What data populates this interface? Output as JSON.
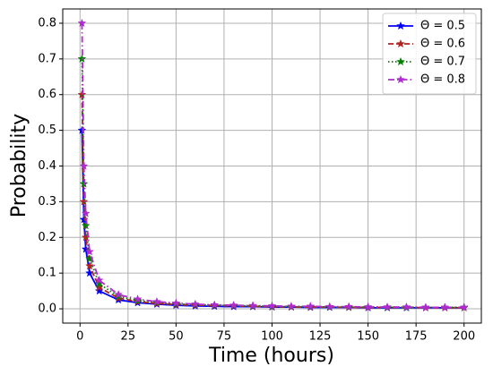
{
  "chart_data": {
    "type": "line",
    "x_label": "Time (hours)",
    "y_label": "Probability",
    "x": [
      1,
      2,
      3,
      5,
      10,
      20,
      30,
      40,
      50,
      60,
      70,
      80,
      90,
      100,
      110,
      120,
      130,
      140,
      150,
      160,
      170,
      180,
      190,
      200
    ],
    "series": [
      {
        "name": "Θ = 0.5",
        "color": "#0000ff",
        "linestyle": "solid",
        "values": [
          0.5,
          0.25,
          0.167,
          0.1,
          0.05,
          0.025,
          0.017,
          0.013,
          0.01,
          0.008,
          0.007,
          0.006,
          0.006,
          0.005,
          0.005,
          0.004,
          0.004,
          0.004,
          0.003,
          0.003,
          0.003,
          0.003,
          0.003,
          0.003
        ]
      },
      {
        "name": "Θ = 0.6",
        "color": "#b22222",
        "linestyle": "dashed",
        "values": [
          0.6,
          0.3,
          0.2,
          0.12,
          0.06,
          0.03,
          0.02,
          0.015,
          0.012,
          0.01,
          0.009,
          0.008,
          0.007,
          0.006,
          0.005,
          0.005,
          0.005,
          0.004,
          0.004,
          0.004,
          0.004,
          0.003,
          0.003,
          0.003
        ]
      },
      {
        "name": "Θ = 0.7",
        "color": "#008000",
        "linestyle": "dotted",
        "values": [
          0.7,
          0.35,
          0.233,
          0.14,
          0.07,
          0.035,
          0.023,
          0.018,
          0.014,
          0.012,
          0.01,
          0.009,
          0.008,
          0.007,
          0.006,
          0.006,
          0.005,
          0.005,
          0.005,
          0.004,
          0.004,
          0.004,
          0.004,
          0.004
        ]
      },
      {
        "name": "Θ = 0.8",
        "color": "#b02ad0",
        "linestyle": "dashdot",
        "values": [
          0.8,
          0.4,
          0.267,
          0.16,
          0.08,
          0.04,
          0.027,
          0.02,
          0.016,
          0.013,
          0.011,
          0.01,
          0.009,
          0.008,
          0.007,
          0.007,
          0.006,
          0.006,
          0.005,
          0.005,
          0.005,
          0.004,
          0.004,
          0.004
        ]
      }
    ],
    "xlim": [
      -9,
      209
    ],
    "ylim": [
      -0.04,
      0.84
    ],
    "xticks": [
      0,
      25,
      50,
      75,
      100,
      125,
      150,
      175,
      200
    ],
    "yticks": [
      {
        "value": 0,
        "label": "0.0"
      },
      0.1,
      0.2,
      0.3,
      0.4,
      0.5,
      0.6,
      0.7,
      0.8
    ],
    "grid": true,
    "legend_position": "upper-right",
    "marker": "star"
  }
}
